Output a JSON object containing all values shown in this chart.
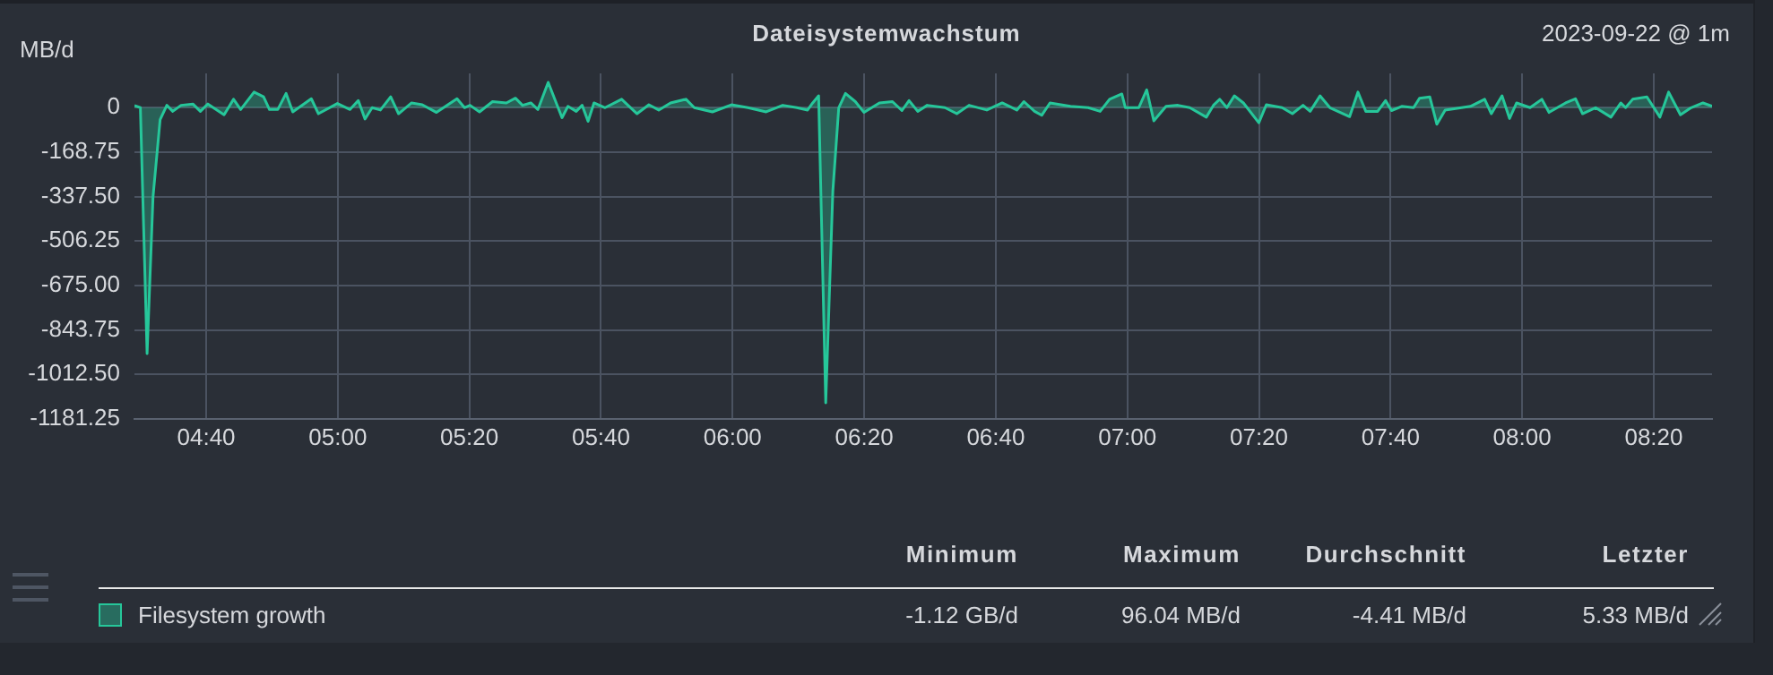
{
  "chart_data": {
    "type": "area",
    "title": "Dateisystemwachstum",
    "subtitle": "2023-09-22 @ 1m",
    "ylabel": "MB/d",
    "x": [
      4.485,
      4.5,
      4.517,
      4.532,
      4.55,
      4.567,
      4.582,
      4.603,
      4.633,
      4.652,
      4.671,
      4.712,
      4.736,
      4.754,
      4.788,
      4.812,
      4.827,
      4.848,
      4.869,
      4.886,
      4.933,
      4.951,
      4.999,
      5.031,
      5.052,
      5.069,
      5.087,
      5.108,
      5.134,
      5.154,
      5.187,
      5.214,
      5.25,
      5.302,
      5.321,
      5.335,
      5.359,
      5.392,
      5.427,
      5.45,
      5.468,
      5.489,
      5.507,
      5.533,
      5.568,
      5.583,
      5.604,
      5.619,
      5.634,
      5.649,
      5.677,
      5.719,
      5.758,
      5.788,
      5.813,
      5.843,
      5.882,
      5.903,
      5.949,
      5.997,
      6.039,
      6.085,
      6.127,
      6.163,
      6.19,
      6.203,
      6.218,
      6.236,
      6.254,
      6.269,
      6.286,
      6.311,
      6.333,
      6.372,
      6.405,
      6.429,
      6.447,
      6.469,
      6.493,
      6.538,
      6.568,
      6.599,
      6.644,
      6.683,
      6.72,
      6.738,
      6.765,
      6.783,
      6.804,
      6.856,
      6.901,
      6.931,
      6.955,
      6.986,
      6.995,
      7.029,
      7.049,
      7.067,
      7.098,
      7.128,
      7.158,
      7.2,
      7.219,
      7.234,
      7.252,
      7.271,
      7.294,
      7.333,
      7.352,
      7.392,
      7.418,
      7.445,
      7.463,
      7.488,
      7.513,
      7.563,
      7.584,
      7.604,
      7.634,
      7.654,
      7.669,
      7.695,
      7.725,
      7.74,
      7.766,
      7.784,
      7.805,
      7.869,
      7.905,
      7.922,
      7.949,
      7.968,
      7.986,
      8.02,
      8.05,
      8.068,
      8.11,
      8.135,
      8.153,
      8.186,
      8.225,
      8.25,
      8.262,
      8.28,
      8.316,
      8.349,
      8.371,
      8.401,
      8.428,
      8.458,
      8.481
    ],
    "series": [
      {
        "name": "Filesystem growth",
        "color": "#26c79a",
        "values": [
          8,
          0,
          -933,
          -339,
          -45,
          9,
          -14,
          9,
          14,
          -14,
          14,
          -27,
          32,
          -7,
          59,
          41,
          -7,
          -7,
          54,
          -16,
          34,
          -23,
          16,
          -7,
          27,
          -43,
          0,
          -9,
          41,
          -23,
          18,
          11,
          -18,
          34,
          0,
          9,
          -16,
          23,
          18,
          36,
          9,
          18,
          -7,
          96.04,
          -38,
          5,
          -14,
          9,
          -52,
          18,
          0,
          32,
          -23,
          11,
          -9,
          18,
          32,
          0,
          -16,
          11,
          0,
          -16,
          9,
          0,
          -9,
          18,
          45,
          -1120,
          -316,
          0,
          54,
          23,
          -18,
          18,
          23,
          -11,
          27,
          -14,
          9,
          0,
          -23,
          9,
          -9,
          18,
          -9,
          23,
          -14,
          -29,
          18,
          5,
          0,
          -14,
          32,
          52,
          0,
          0,
          68,
          -50,
          5,
          9,
          0,
          -36,
          11,
          32,
          0,
          45,
          18,
          -57,
          11,
          0,
          -23,
          9,
          -14,
          45,
          0,
          -34,
          59,
          -14,
          -14,
          27,
          -11,
          5,
          0,
          36,
          41,
          -63,
          -9,
          5,
          32,
          -23,
          45,
          -41,
          18,
          0,
          32,
          -18,
          18,
          34,
          -23,
          0,
          -36,
          18,
          0,
          32,
          41,
          -36,
          59,
          -27,
          0,
          18,
          5.33
        ]
      }
    ],
    "xlim": [
      4.485,
      8.481
    ],
    "xticks": [
      {
        "value": 4.6667,
        "label": "04:40"
      },
      {
        "value": 5,
        "label": "05:00"
      },
      {
        "value": 5.3333,
        "label": "05:20"
      },
      {
        "value": 5.6667,
        "label": "05:40"
      },
      {
        "value": 6,
        "label": "06:00"
      },
      {
        "value": 6.3333,
        "label": "06:20"
      },
      {
        "value": 6.6667,
        "label": "06:40"
      },
      {
        "value": 7,
        "label": "07:00"
      },
      {
        "value": 7.3333,
        "label": "07:20"
      },
      {
        "value": 7.6667,
        "label": "07:40"
      },
      {
        "value": 8,
        "label": "08:00"
      },
      {
        "value": 8.3333,
        "label": "08:20"
      }
    ],
    "ylim": [
      -1181.25,
      130
    ],
    "yticks": [
      0,
      -168.75,
      {
        "value": -337.5,
        "label": "-337.50"
      },
      -506.25,
      {
        "value": -675,
        "label": "-675.00"
      },
      -843.75,
      {
        "value": -1012.5,
        "label": "-1012.50"
      },
      -1181.25
    ],
    "grid": true,
    "legend": "bottom",
    "marker": "none",
    "line_style": "solid",
    "annotations": [
      "Minimum",
      "Maximum",
      "Durchschnitt",
      "Letzter",
      "-1.12 GB/d",
      "96.04 MB/d",
      "-4.41 MB/d",
      "5.33 MB/d"
    ]
  }
}
